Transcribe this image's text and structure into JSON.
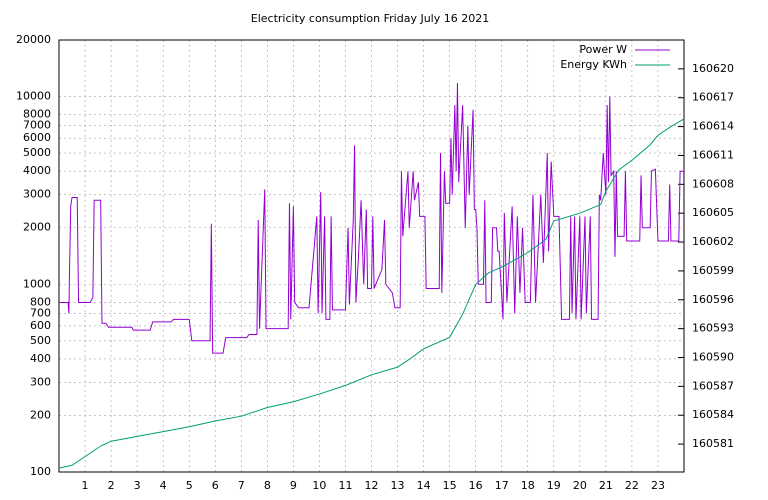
{
  "chart_data": {
    "type": "line",
    "title": "Electricity consumption Friday July 16 2021",
    "xlim": [
      0,
      24
    ],
    "xticks": [
      1,
      2,
      3,
      4,
      5,
      6,
      7,
      8,
      9,
      10,
      11,
      12,
      13,
      14,
      15,
      16,
      17,
      18,
      19,
      20,
      21,
      22,
      23
    ],
    "ylim": [
      100,
      20000
    ],
    "yticks": [
      100,
      200,
      300,
      400,
      500,
      600,
      700,
      800,
      1000,
      2000,
      3000,
      4000,
      5000,
      6000,
      7000,
      8000,
      10000,
      20000
    ],
    "y_log": true,
    "y2lim": [
      160578.1,
      160623
    ],
    "y2ticks": [
      160581,
      160584,
      160587,
      160590,
      160593,
      160596,
      160599,
      160602,
      160605,
      160608,
      160611,
      160614,
      160617,
      160620
    ],
    "grid": true,
    "legend": "top-right",
    "series": [
      {
        "name": "Power W",
        "color": "#9400d3",
        "x": [
          0,
          0.35,
          0.38,
          0.4,
          0.45,
          0.5,
          0.7,
          0.75,
          1.2,
          1.3,
          1.35,
          1.6,
          1.65,
          1.8,
          1.9,
          2.5,
          2.8,
          2.85,
          3.5,
          3.6,
          4.3,
          4.4,
          5.0,
          5.1,
          5.8,
          5.85,
          5.9,
          6.3,
          6.4,
          7.2,
          7.3,
          7.6,
          7.65,
          7.7,
          7.9,
          7.95,
          8.8,
          8.85,
          8.9,
          9.0,
          9.05,
          9.2,
          9.6,
          9.9,
          9.95,
          10.05,
          10.1,
          10.2,
          10.25,
          10.4,
          10.45,
          10.5,
          11.0,
          11.1,
          11.15,
          11.3,
          11.35,
          11.4,
          11.5,
          11.6,
          11.7,
          11.8,
          11.85,
          12.0,
          12.05,
          12.1,
          12.4,
          12.5,
          12.55,
          12.8,
          12.9,
          13.1,
          13.15,
          13.2,
          13.4,
          13.45,
          13.6,
          13.65,
          13.8,
          13.85,
          14.05,
          14.1,
          14.6,
          14.65,
          14.7,
          14.8,
          14.85,
          15.0,
          15.05,
          15.1,
          15.2,
          15.25,
          15.3,
          15.35,
          15.5,
          15.6,
          15.7,
          15.75,
          15.9,
          15.95,
          16.0,
          16.05,
          16.1,
          16.3,
          16.35,
          16.4,
          16.6,
          16.65,
          16.8,
          16.85,
          16.9,
          17.05,
          17.1,
          17.2,
          17.4,
          17.5,
          17.6,
          17.7,
          17.8,
          17.9,
          18.1,
          18.2,
          18.3,
          18.5,
          18.6,
          18.75,
          18.8,
          18.9,
          19.0,
          19.2,
          19.3,
          19.6,
          19.65,
          19.7,
          19.8,
          19.85,
          20.0,
          20.05,
          20.2,
          20.25,
          20.4,
          20.45,
          20.7,
          20.75,
          20.8,
          20.9,
          21.0,
          21.05,
          21.1,
          21.15,
          21.2,
          21.3,
          21.35,
          21.4,
          21.45,
          21.7,
          21.75,
          21.8,
          22.3,
          22.35,
          22.4,
          22.7,
          22.75,
          22.9,
          23.0,
          23.4,
          23.45,
          23.5,
          23.8,
          23.85,
          24
        ],
        "values": [
          800,
          800,
          700,
          1100,
          2600,
          2900,
          2900,
          800,
          800,
          850,
          2800,
          2800,
          620,
          620,
          590,
          590,
          590,
          570,
          570,
          630,
          630,
          650,
          650,
          500,
          500,
          2100,
          430,
          430,
          520,
          520,
          540,
          540,
          2200,
          580,
          3200,
          580,
          580,
          2700,
          650,
          2600,
          800,
          750,
          750,
          2300,
          700,
          3100,
          700,
          2300,
          650,
          650,
          2300,
          730,
          730,
          2000,
          780,
          2200,
          5500,
          800,
          1400,
          2800,
          1000,
          2500,
          950,
          950,
          2300,
          950,
          1200,
          2200,
          1000,
          900,
          750,
          750,
          4000,
          1800,
          4000,
          2000,
          4000,
          2800,
          3500,
          2300,
          2300,
          950,
          950,
          5000,
          900,
          4000,
          2700,
          2700,
          6000,
          3000,
          9000,
          4000,
          11800,
          3500,
          9000,
          2000,
          7000,
          3000,
          8500,
          2500,
          2500,
          2000,
          1000,
          1000,
          2800,
          800,
          800,
          2000,
          2000,
          1500,
          1500,
          650,
          2400,
          800,
          2600,
          700,
          2300,
          900,
          2000,
          800,
          800,
          3000,
          800,
          3000,
          1300,
          5000,
          1500,
          4500,
          2300,
          2300,
          650,
          650,
          2300,
          700,
          2300,
          650,
          2300,
          650,
          2300,
          700,
          2300,
          650,
          650,
          3000,
          2800,
          5000,
          3000,
          9000,
          3500,
          10000,
          3800,
          4000,
          1400,
          4000,
          1800,
          1800,
          4000,
          1700,
          1700,
          3800,
          2000,
          2000,
          4000,
          4100,
          1700,
          1700,
          3400,
          1700,
          1700,
          4000,
          4000
        ]
      },
      {
        "name": "Energy KWh",
        "color": "#009e73",
        "axis": "y2",
        "x": [
          0,
          0.5,
          1,
          1.6,
          2,
          3,
          4,
          5,
          6,
          7,
          8,
          9,
          10,
          11,
          12,
          13,
          13.5,
          14,
          15,
          15.5,
          16,
          16.5,
          17,
          18,
          18.7,
          19,
          20,
          20.8,
          21,
          21.5,
          22,
          22.7,
          23,
          23.5,
          24
        ],
        "values": [
          160578.5,
          160578.8,
          160579.7,
          160580.8,
          160581.3,
          160581.8,
          160582.3,
          160582.8,
          160583.4,
          160583.9,
          160584.8,
          160585.4,
          160586.2,
          160587.1,
          160588.2,
          160589.0,
          160589.9,
          160590.9,
          160592.1,
          160594.5,
          160597.6,
          160598.8,
          160599.4,
          160600.9,
          160602.3,
          160604.2,
          160605.0,
          160605.9,
          160607.3,
          160609.5,
          160610.5,
          160612.1,
          160613.1,
          160614.0,
          160614.8
        ]
      }
    ]
  }
}
